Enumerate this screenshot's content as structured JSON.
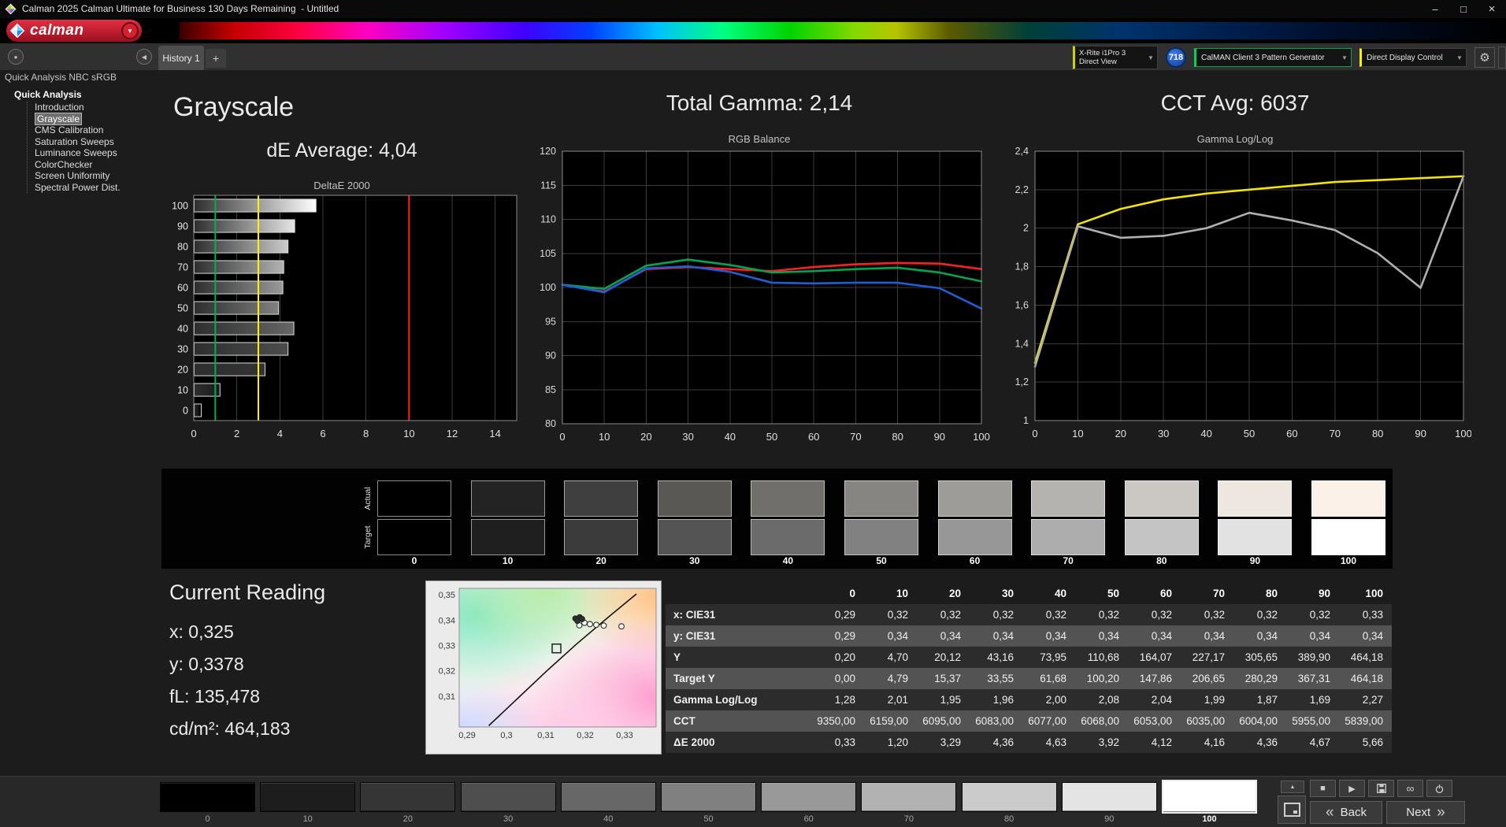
{
  "title_bar": {
    "title": "Calman 2025 Calman Ultimate for Business 130 Days Remaining  - Untitled"
  },
  "logo": {
    "text": "calman"
  },
  "tabs": {
    "active": "History 1",
    "add_label": "+"
  },
  "toolbar": {
    "meter_line1": "X-Rite i1Pro 3",
    "meter_line2": "Direct View",
    "badge": "718",
    "pattern_generator": "CalMAN Client 3 Pattern Generator",
    "display_control": "Direct Display Control"
  },
  "sidebar": {
    "header": "Quick Analysis NBC sRGB",
    "root": "Quick Analysis",
    "items": [
      {
        "label": "Introduction",
        "selected": false
      },
      {
        "label": "Grayscale",
        "selected": true
      },
      {
        "label": "CMS Calibration",
        "selected": false
      },
      {
        "label": "Saturation Sweeps",
        "selected": false
      },
      {
        "label": "Luminance Sweeps",
        "selected": false
      },
      {
        "label": "ColorChecker",
        "selected": false
      },
      {
        "label": "Screen Uniformity",
        "selected": false
      },
      {
        "label": "Spectral Power Dist.",
        "selected": false
      }
    ]
  },
  "headings": {
    "grayscale": "Grayscale",
    "de_average": "dE Average: 4,04",
    "total_gamma": "Total Gamma: 2,14",
    "cct_avg": "CCT Avg: 6037"
  },
  "swatches": {
    "row_labels": [
      "Actual",
      "Target"
    ],
    "columns": [
      "0",
      "10",
      "20",
      "30",
      "40",
      "50",
      "60",
      "70",
      "80",
      "90",
      "100"
    ],
    "actual_colors": [
      "#000000",
      "#232323",
      "#3f3f3f",
      "#5a5855",
      "#716f6b",
      "#878582",
      "#9e9c99",
      "#b5b3b0",
      "#cbc8c4",
      "#eee7df",
      "#fbf1e8"
    ],
    "target_colors": [
      "#000000",
      "#1f1f1f",
      "#3b3b3b",
      "#545454",
      "#6b6b6b",
      "#818181",
      "#979797",
      "#adadad",
      "#c4c4c4",
      "#e2e2e2",
      "#ffffff"
    ]
  },
  "current_reading": {
    "title": "Current Reading",
    "lines": [
      "x: 0,325",
      "y: 0,3378",
      "fL: 135,478",
      "cd/m²: 464,183"
    ]
  },
  "table": {
    "columns": [
      "0",
      "10",
      "20",
      "30",
      "40",
      "50",
      "60",
      "70",
      "80",
      "90",
      "100"
    ],
    "rows": [
      {
        "label": "x: CIE31",
        "values": [
          "0,29",
          "0,32",
          "0,32",
          "0,32",
          "0,32",
          "0,32",
          "0,32",
          "0,32",
          "0,32",
          "0,32",
          "0,33"
        ]
      },
      {
        "label": "y: CIE31",
        "values": [
          "0,29",
          "0,34",
          "0,34",
          "0,34",
          "0,34",
          "0,34",
          "0,34",
          "0,34",
          "0,34",
          "0,34",
          "0,34"
        ]
      },
      {
        "label": "Y",
        "values": [
          "0,20",
          "4,70",
          "20,12",
          "43,16",
          "73,95",
          "110,68",
          "164,07",
          "227,17",
          "305,65",
          "389,90",
          "464,18"
        ]
      },
      {
        "label": "Target Y",
        "values": [
          "0,00",
          "4,79",
          "15,37",
          "33,55",
          "61,68",
          "100,20",
          "147,86",
          "206,65",
          "280,29",
          "367,31",
          "464,18"
        ]
      },
      {
        "label": "Gamma Log/Log",
        "values": [
          "1,28",
          "2,01",
          "1,95",
          "1,96",
          "2,00",
          "2,08",
          "2,04",
          "1,99",
          "1,87",
          "1,69",
          "2,27"
        ]
      },
      {
        "label": "CCT",
        "values": [
          "9350,00",
          "6159,00",
          "6095,00",
          "6083,00",
          "6077,00",
          "6068,00",
          "6053,00",
          "6035,00",
          "6004,00",
          "5955,00",
          "5839,00"
        ]
      },
      {
        "label": "ΔE 2000",
        "values": [
          "0,33",
          "1,20",
          "3,29",
          "4,36",
          "4,63",
          "3,92",
          "4,12",
          "4,16",
          "4,36",
          "4,67",
          "5,66"
        ]
      }
    ]
  },
  "bottom_bar": {
    "patch_labels": [
      "0",
      "10",
      "20",
      "30",
      "40",
      "50",
      "60",
      "70",
      "80",
      "90",
      "100"
    ],
    "patch_colors": [
      "#000000",
      "#1d1d1d",
      "#353535",
      "#4e4e4e",
      "#676767",
      "#808080",
      "#999999",
      "#b2b2b2",
      "#cbcbcb",
      "#e4e4e4",
      "#ffffff"
    ],
    "selected_index": 10,
    "back_label": "Back",
    "next_label": "Next"
  },
  "icons": {
    "minimize": "–",
    "maximize": "□",
    "close": "×",
    "dropdown": "▼",
    "collapse_sidebar": "◀",
    "pin": "●",
    "gear": "⚙",
    "up": "▲",
    "stop": "■",
    "play": "▶",
    "loop": "∞",
    "back_chevron": "«",
    "next_chevron": "»"
  },
  "chart_data": [
    {
      "id": "deltae2000",
      "type": "bar",
      "orientation": "horizontal",
      "title": "DeltaE 2000",
      "categories": [
        "100",
        "90",
        "80",
        "70",
        "60",
        "50",
        "40",
        "30",
        "20",
        "10",
        "0"
      ],
      "bar_levels": [
        100,
        90,
        80,
        70,
        60,
        50,
        40,
        30,
        20,
        10,
        0
      ],
      "values": [
        5.66,
        4.67,
        4.36,
        4.16,
        4.12,
        3.92,
        4.63,
        4.36,
        3.29,
        1.2,
        0.33
      ],
      "xlim": [
        0,
        15
      ],
      "xticks": [
        0,
        2,
        4,
        6,
        8,
        10,
        12,
        14
      ],
      "xtick_labels": [
        "0",
        "2",
        "4",
        "6",
        "8",
        "10",
        "12",
        "14"
      ],
      "ref_lines": [
        {
          "name": "de-limit-1",
          "value": 1,
          "color": "#00b050"
        },
        {
          "name": "de-limit-3",
          "value": 3,
          "color": "#fff200"
        },
        {
          "name": "de-limit-10",
          "value": 10,
          "color": "#ff2020"
        }
      ]
    },
    {
      "id": "rgb_balance",
      "type": "line",
      "title": "RGB Balance",
      "x": [
        0,
        10,
        20,
        30,
        40,
        50,
        60,
        70,
        80,
        90,
        100
      ],
      "xlim": [
        0,
        100
      ],
      "ylim": [
        80,
        120
      ],
      "yticks": [
        80,
        85,
        90,
        95,
        100,
        105,
        110,
        115,
        120
      ],
      "ytick_labels": [
        "80",
        "85",
        "90",
        "95",
        "100",
        "105",
        "110",
        "115",
        "120"
      ],
      "xticks": [
        0,
        10,
        20,
        30,
        40,
        50,
        60,
        70,
        80,
        90,
        100
      ],
      "xtick_labels": [
        "0",
        "10",
        "20",
        "30",
        "40",
        "50",
        "60",
        "70",
        "80",
        "90",
        "100"
      ],
      "series": [
        {
          "name": "red-balance",
          "color": "#ff1f1f",
          "values": [
            100.4,
            99.4,
            102.7,
            103.0,
            102.7,
            102.4,
            103.0,
            103.4,
            103.6,
            103.5,
            102.7
          ]
        },
        {
          "name": "green-balance",
          "color": "#00a651",
          "values": [
            100.4,
            99.8,
            103.2,
            104.1,
            103.3,
            102.2,
            102.4,
            102.7,
            102.9,
            102.2,
            100.9
          ]
        },
        {
          "name": "blue-balance",
          "color": "#1f5fd6",
          "values": [
            100.4,
            99.3,
            102.8,
            103.1,
            102.3,
            100.7,
            100.6,
            100.7,
            100.7,
            99.9,
            96.9
          ]
        }
      ]
    },
    {
      "id": "gamma_loglog",
      "type": "line",
      "title": "Gamma Log/Log",
      "x": [
        0,
        10,
        20,
        30,
        40,
        50,
        60,
        70,
        80,
        90,
        100
      ],
      "xlim": [
        0,
        100
      ],
      "ylim": [
        1,
        2.4
      ],
      "yticks": [
        1,
        1.2,
        1.4,
        1.6,
        1.8,
        2,
        2.2,
        2.4
      ],
      "ytick_labels": [
        "1",
        "1,2",
        "1,4",
        "1,6",
        "1,8",
        "2",
        "2,2",
        "2,4"
      ],
      "xticks": [
        0,
        10,
        20,
        30,
        40,
        50,
        60,
        70,
        80,
        90,
        100
      ],
      "xtick_labels": [
        "0",
        "10",
        "20",
        "30",
        "40",
        "50",
        "60",
        "70",
        "80",
        "90",
        "100"
      ],
      "series": [
        {
          "name": "target-gamma",
          "color": "#f5e400",
          "values": [
            1.3,
            2.02,
            2.1,
            2.15,
            2.18,
            2.2,
            2.22,
            2.24,
            2.25,
            2.26,
            2.27
          ]
        },
        {
          "name": "measured-gamma",
          "color": "#b0b0b0",
          "values": [
            1.28,
            2.01,
            1.95,
            1.96,
            2.0,
            2.08,
            2.04,
            1.99,
            1.87,
            1.69,
            2.27
          ]
        }
      ]
    },
    {
      "id": "cie_chart",
      "type": "scatter",
      "title": "CIE chromaticity",
      "xlim": [
        0.288,
        0.338
      ],
      "ylim": [
        0.298,
        0.3527
      ],
      "xticks": [
        0.29,
        0.3,
        0.31,
        0.32,
        0.33
      ],
      "xtick_labels": [
        "0,29",
        "0,3",
        "0,31",
        "0,32",
        "0,33"
      ],
      "yticks": [
        0.31,
        0.32,
        0.33,
        0.34,
        0.35
      ],
      "ytick_labels": [
        "0,31",
        "0,32",
        "0,33",
        "0,34",
        "0,35"
      ],
      "locus": [
        [
          0.2955,
          0.2985
        ],
        [
          0.303,
          0.3095
        ],
        [
          0.3105,
          0.3205
        ],
        [
          0.318,
          0.331
        ],
        [
          0.326,
          0.3415
        ],
        [
          0.333,
          0.3505
        ]
      ],
      "target_square": [
        0.3127,
        0.329
      ],
      "points_filled": [
        [
          0.3175,
          0.3408
        ],
        [
          0.3186,
          0.3413
        ],
        [
          0.318,
          0.3399
        ],
        [
          0.3192,
          0.3406
        ]
      ],
      "points_open": [
        [
          0.3185,
          0.3381
        ],
        [
          0.3198,
          0.3391
        ],
        [
          0.3212,
          0.3386
        ],
        [
          0.3228,
          0.3383
        ],
        [
          0.3247,
          0.338
        ],
        [
          0.3292,
          0.3377
        ]
      ]
    }
  ]
}
